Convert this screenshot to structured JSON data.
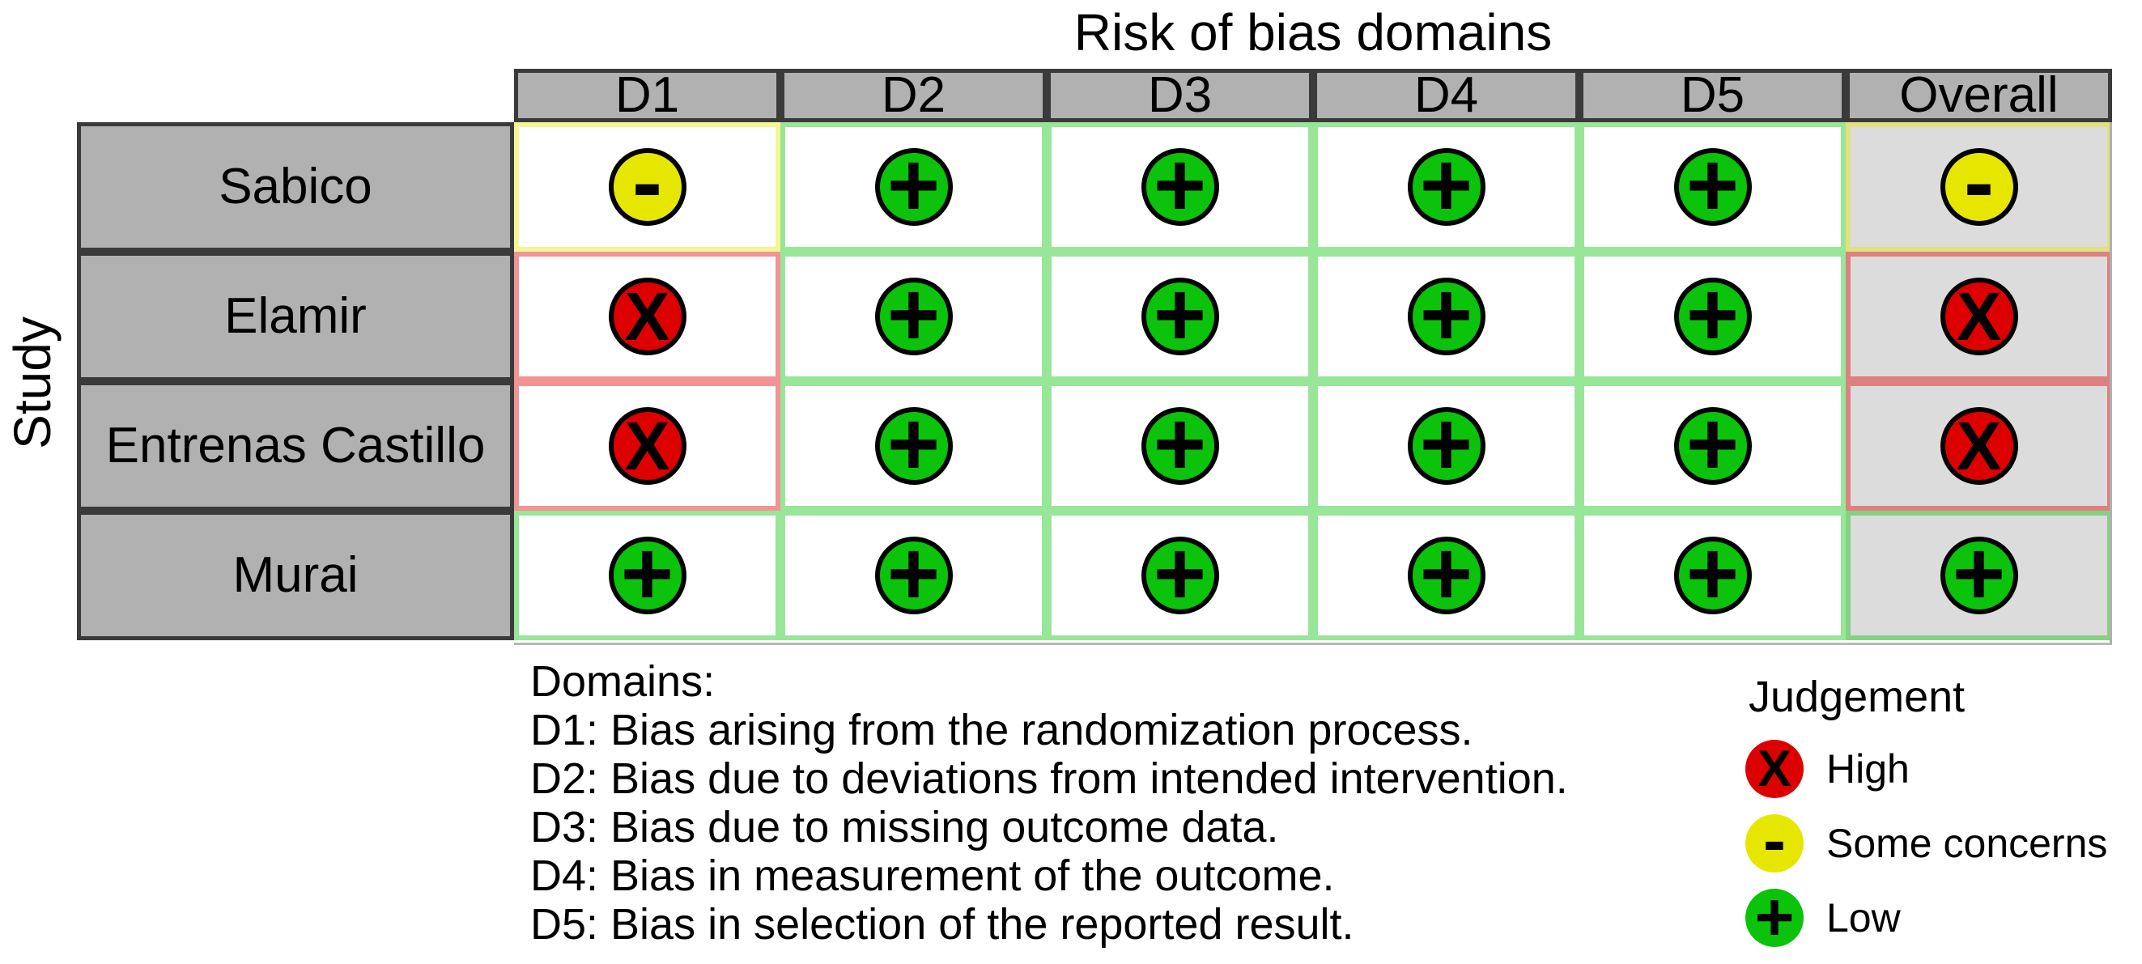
{
  "chart_data": {
    "type": "table",
    "title": "Risk of bias domains",
    "ylabel": "Study",
    "columns": [
      "D1",
      "D2",
      "D3",
      "D4",
      "D5",
      "Overall"
    ],
    "rows": [
      {
        "study": "Sabico",
        "ratings": [
          "some",
          "low",
          "low",
          "low",
          "low",
          "some"
        ]
      },
      {
        "study": "Elamir",
        "ratings": [
          "high",
          "low",
          "low",
          "low",
          "low",
          "high"
        ]
      },
      {
        "study": "Entrenas Castillo",
        "ratings": [
          "high",
          "low",
          "low",
          "low",
          "low",
          "high"
        ]
      },
      {
        "study": "Murai",
        "ratings": [
          "low",
          "low",
          "low",
          "low",
          "low",
          "low"
        ]
      }
    ],
    "levels": {
      "high": {
        "label": "High",
        "symbol": "X",
        "color": "#dd0000"
      },
      "some": {
        "label": "Some concerns",
        "symbol": "-",
        "color": "#e6e600"
      },
      "low": {
        "label": "Low",
        "symbol": "+",
        "color": "#0ac30a"
      }
    },
    "legend": {
      "title": "Judgement",
      "order": [
        "high",
        "some",
        "low"
      ]
    },
    "notes": {
      "heading": "Domains:",
      "lines": [
        "D1: Bias arising from the randomization process.",
        "D2: Bias due to deviations from intended intervention.",
        "D3: Bias due to missing outcome data.",
        "D4: Bias in measurement of the outcome.",
        "D5: Bias in selection of the reported result."
      ]
    },
    "layout": {
      "grid": "on",
      "legend_position": "bottom-right",
      "overall_column_highlighted": true
    }
  },
  "styles": {
    "header_bg": "#b1b1b1",
    "row_label_bg": "#b1b1b1",
    "overall_col_bg": "#dcdcdc",
    "grid_dark": "#3a3a3a",
    "panel_frame": "#b0b0b0",
    "circle_outline": "#000000",
    "tile_border_alpha": 0.42
  }
}
